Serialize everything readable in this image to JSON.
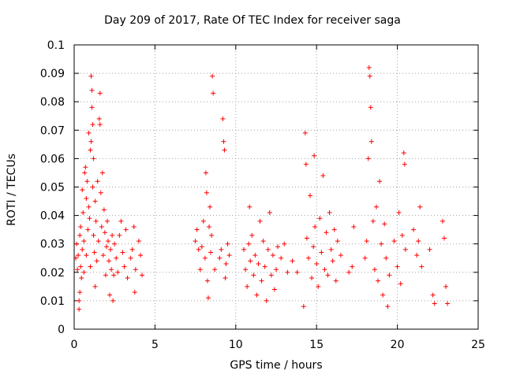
{
  "chart_data": {
    "type": "scatter",
    "title": "Day 209 of 2017, Rate Of TEC Index for receiver saga",
    "xlabel": "GPS time / hours",
    "ylabel": "ROTI / TECUs",
    "xlim": [
      0,
      25
    ],
    "ylim": [
      0,
      0.1
    ],
    "x_ticks": [
      0,
      5,
      10,
      15,
      20,
      25
    ],
    "y_ticks": [
      0,
      0.01,
      0.02,
      0.03,
      0.04,
      0.05,
      0.06,
      0.07,
      0.08,
      0.09,
      0.1
    ],
    "x_tick_labels": [
      "0",
      "5",
      "10",
      "15",
      "20",
      "25"
    ],
    "y_tick_labels": [
      "0",
      "0.01",
      "0.02",
      "0.03",
      "0.04",
      "0.05",
      "0.06",
      "0.07",
      "0.08",
      "0.09",
      "0.1"
    ],
    "grid": true,
    "marker": "+",
    "color": "#ff0000",
    "series": [
      {
        "points": [
          [
            0.1,
            0.025
          ],
          [
            0.15,
            0.03
          ],
          [
            0.2,
            0.021
          ],
          [
            0.25,
            0.026
          ],
          [
            0.3,
            0.01
          ],
          [
            0.3,
            0.007
          ],
          [
            0.35,
            0.013
          ],
          [
            0.35,
            0.033
          ],
          [
            0.4,
            0.022
          ],
          [
            0.4,
            0.036
          ],
          [
            0.45,
            0.018
          ],
          [
            0.5,
            0.049
          ],
          [
            0.5,
            0.028
          ],
          [
            0.55,
            0.041
          ],
          [
            0.6,
            0.031
          ],
          [
            0.6,
            0.02
          ],
          [
            0.65,
            0.055
          ],
          [
            0.7,
            0.057
          ],
          [
            0.75,
            0.046
          ],
          [
            0.75,
            0.026
          ],
          [
            0.8,
            0.052
          ],
          [
            0.85,
            0.035
          ],
          [
            0.9,
            0.069
          ],
          [
            0.9,
            0.043
          ],
          [
            0.95,
            0.039
          ],
          [
            1.0,
            0.063
          ],
          [
            1.0,
            0.022
          ],
          [
            1.05,
            0.066
          ],
          [
            1.05,
            0.089
          ],
          [
            1.1,
            0.084
          ],
          [
            1.1,
            0.078
          ],
          [
            1.15,
            0.072
          ],
          [
            1.15,
            0.05
          ],
          [
            1.2,
            0.06
          ],
          [
            1.2,
            0.033
          ],
          [
            1.25,
            0.027
          ],
          [
            1.3,
            0.045
          ],
          [
            1.3,
            0.015
          ],
          [
            1.35,
            0.038
          ],
          [
            1.4,
            0.024
          ],
          [
            1.45,
            0.052
          ],
          [
            1.5,
            0.031
          ],
          [
            1.55,
            0.074
          ],
          [
            1.6,
            0.072
          ],
          [
            1.6,
            0.083
          ],
          [
            1.65,
            0.048
          ],
          [
            1.7,
            0.036
          ],
          [
            1.75,
            0.055
          ],
          [
            1.8,
            0.026
          ],
          [
            1.85,
            0.042
          ],
          [
            1.9,
            0.034
          ],
          [
            1.95,
            0.019
          ],
          [
            2.0,
            0.029
          ],
          [
            2.05,
            0.038
          ],
          [
            2.1,
            0.031
          ],
          [
            2.15,
            0.024
          ],
          [
            2.2,
            0.012
          ],
          [
            2.25,
            0.028
          ],
          [
            2.3,
            0.021
          ],
          [
            2.35,
            0.033
          ],
          [
            2.4,
            0.01
          ],
          [
            2.45,
            0.019
          ],
          [
            2.5,
            0.03
          ],
          [
            2.6,
            0.025
          ],
          [
            2.7,
            0.02
          ],
          [
            2.8,
            0.033
          ],
          [
            2.9,
            0.038
          ],
          [
            3.0,
            0.027
          ],
          [
            3.1,
            0.022
          ],
          [
            3.2,
            0.035
          ],
          [
            3.3,
            0.018
          ],
          [
            3.5,
            0.025
          ],
          [
            3.6,
            0.028
          ],
          [
            3.7,
            0.036
          ],
          [
            3.75,
            0.013
          ],
          [
            3.8,
            0.021
          ],
          [
            4.0,
            0.031
          ],
          [
            4.1,
            0.026
          ],
          [
            4.2,
            0.019
          ],
          [
            7.5,
            0.031
          ],
          [
            7.6,
            0.035
          ],
          [
            7.7,
            0.028
          ],
          [
            7.8,
            0.021
          ],
          [
            7.9,
            0.029
          ],
          [
            8.0,
            0.038
          ],
          [
            8.1,
            0.025
          ],
          [
            8.15,
            0.055
          ],
          [
            8.2,
            0.048
          ],
          [
            8.25,
            0.017
          ],
          [
            8.3,
            0.011
          ],
          [
            8.35,
            0.036
          ],
          [
            8.4,
            0.043
          ],
          [
            8.45,
            0.027
          ],
          [
            8.5,
            0.033
          ],
          [
            8.55,
            0.089
          ],
          [
            8.6,
            0.083
          ],
          [
            8.7,
            0.021
          ],
          [
            9.0,
            0.025
          ],
          [
            9.1,
            0.028
          ],
          [
            9.2,
            0.074
          ],
          [
            9.25,
            0.066
          ],
          [
            9.3,
            0.063
          ],
          [
            9.35,
            0.018
          ],
          [
            9.4,
            0.023
          ],
          [
            9.5,
            0.03
          ],
          [
            9.6,
            0.026
          ],
          [
            10.5,
            0.028
          ],
          [
            10.6,
            0.021
          ],
          [
            10.7,
            0.015
          ],
          [
            10.8,
            0.03
          ],
          [
            10.85,
            0.043
          ],
          [
            10.9,
            0.024
          ],
          [
            11.0,
            0.033
          ],
          [
            11.1,
            0.019
          ],
          [
            11.2,
            0.026
          ],
          [
            11.3,
            0.012
          ],
          [
            11.4,
            0.023
          ],
          [
            11.5,
            0.038
          ],
          [
            11.6,
            0.017
          ],
          [
            11.7,
            0.031
          ],
          [
            11.8,
            0.022
          ],
          [
            11.9,
            0.01
          ],
          [
            12.0,
            0.028
          ],
          [
            12.1,
            0.041
          ],
          [
            12.2,
            0.019
          ],
          [
            12.3,
            0.026
          ],
          [
            12.4,
            0.014
          ],
          [
            12.5,
            0.021
          ],
          [
            12.6,
            0.029
          ],
          [
            12.8,
            0.025
          ],
          [
            13.0,
            0.03
          ],
          [
            13.2,
            0.02
          ],
          [
            13.5,
            0.024
          ],
          [
            13.8,
            0.02
          ],
          [
            14.2,
            0.008
          ],
          [
            14.3,
            0.069
          ],
          [
            14.35,
            0.058
          ],
          [
            14.4,
            0.032
          ],
          [
            14.5,
            0.025
          ],
          [
            14.6,
            0.047
          ],
          [
            14.7,
            0.018
          ],
          [
            14.8,
            0.029
          ],
          [
            14.85,
            0.061
          ],
          [
            14.9,
            0.036
          ],
          [
            15.0,
            0.023
          ],
          [
            15.1,
            0.015
          ],
          [
            15.2,
            0.039
          ],
          [
            15.3,
            0.027
          ],
          [
            15.4,
            0.054
          ],
          [
            15.5,
            0.021
          ],
          [
            15.6,
            0.034
          ],
          [
            15.7,
            0.019
          ],
          [
            15.8,
            0.041
          ],
          [
            15.9,
            0.028
          ],
          [
            16.0,
            0.024
          ],
          [
            16.1,
            0.035
          ],
          [
            16.2,
            0.017
          ],
          [
            16.3,
            0.031
          ],
          [
            16.5,
            0.026
          ],
          [
            17.0,
            0.02
          ],
          [
            17.2,
            0.022
          ],
          [
            17.3,
            0.036
          ],
          [
            18.0,
            0.025
          ],
          [
            18.1,
            0.031
          ],
          [
            18.2,
            0.06
          ],
          [
            18.25,
            0.092
          ],
          [
            18.3,
            0.089
          ],
          [
            18.35,
            0.078
          ],
          [
            18.4,
            0.066
          ],
          [
            18.5,
            0.038
          ],
          [
            18.6,
            0.021
          ],
          [
            18.7,
            0.043
          ],
          [
            18.8,
            0.017
          ],
          [
            18.9,
            0.052
          ],
          [
            19.0,
            0.03
          ],
          [
            19.1,
            0.012
          ],
          [
            19.2,
            0.037
          ],
          [
            19.3,
            0.025
          ],
          [
            19.4,
            0.008
          ],
          [
            19.5,
            0.019
          ],
          [
            19.8,
            0.031
          ],
          [
            20.0,
            0.022
          ],
          [
            20.1,
            0.041
          ],
          [
            20.2,
            0.016
          ],
          [
            20.3,
            0.033
          ],
          [
            20.4,
            0.062
          ],
          [
            20.45,
            0.058
          ],
          [
            20.5,
            0.028
          ],
          [
            21.0,
            0.035
          ],
          [
            21.2,
            0.026
          ],
          [
            21.3,
            0.031
          ],
          [
            21.4,
            0.043
          ],
          [
            21.5,
            0.022
          ],
          [
            22.0,
            0.028
          ],
          [
            22.2,
            0.012
          ],
          [
            22.3,
            0.009
          ],
          [
            22.8,
            0.038
          ],
          [
            22.9,
            0.032
          ],
          [
            23.0,
            0.015
          ],
          [
            23.1,
            0.009
          ]
        ]
      }
    ]
  }
}
